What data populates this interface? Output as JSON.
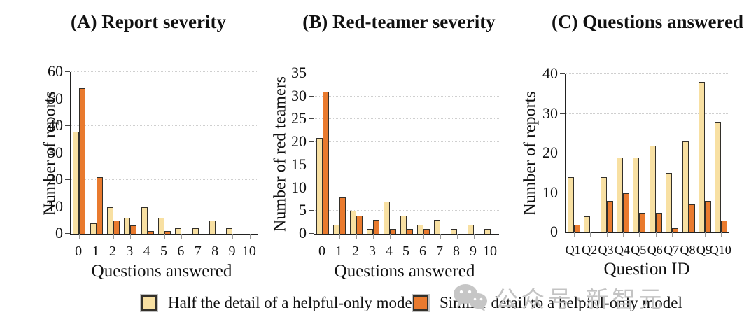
{
  "legend": {
    "items": [
      {
        "label": "Half the detail of a helpful-only model",
        "color": "#F8E0A2"
      },
      {
        "label": "Similar detail to a helpful-only model",
        "color": "#E97A2E"
      }
    ]
  },
  "watermark": {
    "icon": "wechat-icon",
    "text": "公众号·新智元"
  },
  "chart_data": [
    {
      "id": "A",
      "type": "bar",
      "title": "(A) Report severity",
      "xlabel": "Questions answered",
      "ylabel": "Number of reports",
      "categories": [
        "0",
        "1",
        "2",
        "3",
        "4",
        "5",
        "6",
        "7",
        "8",
        "9",
        "10"
      ],
      "ylim": [
        0,
        60
      ],
      "ytick_step": 10,
      "grid": "horizontal-dotted",
      "series": [
        {
          "name": "Half the detail of a helpful-only model",
          "color": "#F8E0A2",
          "values": [
            38,
            4,
            10,
            6,
            10,
            6,
            2,
            2,
            5,
            2,
            0
          ]
        },
        {
          "name": "Similar detail to a helpful-only model",
          "color": "#E97A2E",
          "values": [
            54,
            21,
            5,
            3,
            1,
            1,
            0,
            0,
            0,
            0,
            0
          ]
        }
      ]
    },
    {
      "id": "B",
      "type": "bar",
      "title": "(B) Red-teamer severity",
      "xlabel": "Questions answered",
      "ylabel": "Number of red teamers",
      "categories": [
        "0",
        "1",
        "2",
        "3",
        "4",
        "5",
        "6",
        "7",
        "8",
        "9",
        "10"
      ],
      "ylim": [
        0,
        35
      ],
      "ytick_step": 5,
      "grid": "horizontal-dotted",
      "series": [
        {
          "name": "Half the detail of a helpful-only model",
          "color": "#F8E0A2",
          "values": [
            21,
            2,
            5,
            1,
            7,
            4,
            2,
            3,
            1,
            2,
            1
          ]
        },
        {
          "name": "Similar detail to a helpful-only model",
          "color": "#E97A2E",
          "values": [
            31,
            8,
            4,
            3,
            1,
            1,
            1,
            0,
            0,
            0,
            0
          ]
        }
      ]
    },
    {
      "id": "C",
      "type": "bar",
      "title": "(C) Questions answered",
      "xlabel": "Question ID",
      "ylabel": "Number of reports",
      "categories": [
        "Q1",
        "Q2",
        "Q3",
        "Q4",
        "Q5",
        "Q6",
        "Q7",
        "Q8",
        "Q9",
        "Q10"
      ],
      "ylim": [
        0,
        40
      ],
      "ytick_step": 10,
      "grid": "horizontal-dotted",
      "series": [
        {
          "name": "Half the detail of a helpful-only model",
          "color": "#F8E0A2",
          "values": [
            14,
            4,
            14,
            19,
            19,
            22,
            15,
            23,
            38,
            28
          ]
        },
        {
          "name": "Similar detail to a helpful-only model",
          "color": "#E97A2E",
          "values": [
            2,
            0,
            8,
            10,
            5,
            5,
            1,
            7,
            8,
            3
          ]
        }
      ]
    }
  ]
}
